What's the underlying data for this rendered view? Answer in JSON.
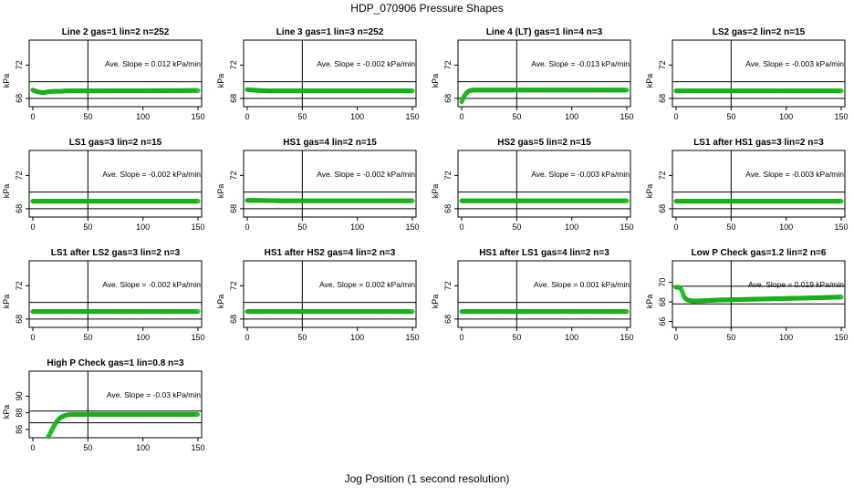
{
  "page": {
    "title": "HDP_070906  Pressure Shapes",
    "x_caption": "Jog Position (1 second resolution)"
  },
  "colors": {
    "series": "#22cc22",
    "series_edge": "#119911",
    "axes": "#000000",
    "background": "#ffffff"
  },
  "chart_data": [
    {
      "type": "scatter",
      "title": "Line 2 gas=1 lin=2 n=252",
      "ylabel": "kPa",
      "annotation": "Ave. Slope =  0.012  kPa/min",
      "xlim": [
        0,
        150
      ],
      "xticks": [
        0,
        50,
        100,
        150
      ],
      "ylim": [
        67,
        75
      ],
      "yticks": [
        68,
        72
      ],
      "hlines": [
        68,
        70
      ],
      "vline": 50,
      "series": [
        {
          "x": [
            0,
            2,
            4,
            6,
            8,
            10,
            12,
            15,
            20,
            25,
            30,
            40,
            60,
            80,
            100,
            120,
            150
          ],
          "y": [
            69.0,
            68.9,
            68.8,
            68.75,
            68.7,
            68.7,
            68.75,
            68.8,
            68.85,
            68.85,
            68.9,
            68.9,
            68.9,
            68.92,
            68.92,
            68.93,
            68.95
          ]
        }
      ]
    },
    {
      "type": "scatter",
      "title": "Line 3 gas=1 lin=3 n=252",
      "ylabel": "kPa",
      "annotation": "Ave. Slope =  -0.002  kPa/min",
      "xlim": [
        0,
        150
      ],
      "xticks": [
        0,
        50,
        100,
        150
      ],
      "ylim": [
        67,
        75
      ],
      "yticks": [
        68,
        72
      ],
      "hlines": [
        68,
        70
      ],
      "vline": 50,
      "series": [
        {
          "x": [
            0,
            5,
            10,
            20,
            40,
            60,
            80,
            100,
            120,
            150
          ],
          "y": [
            69.05,
            69.0,
            68.95,
            68.9,
            68.9,
            68.9,
            68.9,
            68.9,
            68.9,
            68.9
          ]
        }
      ]
    },
    {
      "type": "scatter",
      "title": "Line 4 (LT) gas=1 lin=4 n=3",
      "ylabel": "kPa",
      "annotation": "Ave. Slope =  -0.013  kPa/min",
      "xlim": [
        0,
        150
      ],
      "xticks": [
        0,
        50,
        100,
        150
      ],
      "ylim": [
        67,
        75
      ],
      "yticks": [
        68,
        72
      ],
      "hlines": [
        68,
        70
      ],
      "vline": 50,
      "series": [
        {
          "x": [
            0,
            1,
            2,
            3,
            4,
            5,
            6,
            7,
            8,
            9,
            10,
            15,
            20,
            40,
            60,
            80,
            100,
            120,
            150
          ],
          "y": [
            67.6,
            67.9,
            68.2,
            68.4,
            68.6,
            68.75,
            68.85,
            68.9,
            68.95,
            68.95,
            69.0,
            69.0,
            69.0,
            69.0,
            69.0,
            69.0,
            69.0,
            69.0,
            69.0
          ]
        }
      ]
    },
    {
      "type": "scatter",
      "title": "LS2 gas=2 lin=2 n=15",
      "ylabel": "kPa",
      "annotation": "Ave. Slope =  -0.003  kPa/min",
      "xlim": [
        0,
        150
      ],
      "xticks": [
        0,
        50,
        100,
        150
      ],
      "ylim": [
        67,
        75
      ],
      "yticks": [
        68,
        72
      ],
      "hlines": [
        68,
        70
      ],
      "vline": 50,
      "series": [
        {
          "x": [
            0,
            10,
            30,
            60,
            90,
            120,
            150
          ],
          "y": [
            68.9,
            68.9,
            68.9,
            68.9,
            68.9,
            68.9,
            68.9
          ]
        }
      ]
    },
    {
      "type": "scatter",
      "title": "LS1 gas=3 lin=2 n=15",
      "ylabel": "kPa",
      "annotation": "Ave. Slope =  -0.002  kPa/min",
      "xlim": [
        0,
        150
      ],
      "xticks": [
        0,
        50,
        100,
        150
      ],
      "ylim": [
        67,
        75
      ],
      "yticks": [
        68,
        72
      ],
      "hlines": [
        68,
        70
      ],
      "vline": 50,
      "series": [
        {
          "x": [
            0,
            10,
            30,
            60,
            90,
            120,
            150
          ],
          "y": [
            68.9,
            68.9,
            68.9,
            68.9,
            68.9,
            68.9,
            68.9
          ]
        }
      ]
    },
    {
      "type": "scatter",
      "title": "HS1 gas=4 lin=2 n=15",
      "ylabel": "kPa",
      "annotation": "Ave. Slope =  -0.002  kPa/min",
      "xlim": [
        0,
        150
      ],
      "xticks": [
        0,
        50,
        100,
        150
      ],
      "ylim": [
        67,
        75
      ],
      "yticks": [
        68,
        72
      ],
      "hlines": [
        68,
        70
      ],
      "vline": 50,
      "series": [
        {
          "x": [
            0,
            10,
            30,
            60,
            90,
            120,
            150
          ],
          "y": [
            69.0,
            69.0,
            68.95,
            68.95,
            68.95,
            68.95,
            68.95
          ]
        }
      ]
    },
    {
      "type": "scatter",
      "title": "HS2 gas=5 lin=2 n=15",
      "ylabel": "kPa",
      "annotation": "Ave. Slope =  -0.003  kPa/min",
      "xlim": [
        0,
        150
      ],
      "xticks": [
        0,
        50,
        100,
        150
      ],
      "ylim": [
        67,
        75
      ],
      "yticks": [
        68,
        72
      ],
      "hlines": [
        68,
        70
      ],
      "vline": 50,
      "series": [
        {
          "x": [
            0,
            10,
            30,
            60,
            90,
            120,
            150
          ],
          "y": [
            68.95,
            68.95,
            68.95,
            68.95,
            68.95,
            68.95,
            68.95
          ]
        }
      ]
    },
    {
      "type": "scatter",
      "title": "LS1 after HS1 gas=3 lin=2 n=3",
      "ylabel": "kPa",
      "annotation": "Ave. Slope =  -0.003  kPa/min",
      "xlim": [
        0,
        150
      ],
      "xticks": [
        0,
        50,
        100,
        150
      ],
      "ylim": [
        67,
        75
      ],
      "yticks": [
        68,
        72
      ],
      "hlines": [
        68,
        70
      ],
      "vline": 50,
      "series": [
        {
          "x": [
            0,
            10,
            30,
            60,
            90,
            120,
            150
          ],
          "y": [
            68.9,
            68.9,
            68.9,
            68.9,
            68.9,
            68.9,
            68.9
          ]
        }
      ]
    },
    {
      "type": "scatter",
      "title": "LS1 after LS2 gas=3 lin=2 n=3",
      "ylabel": "kPa",
      "annotation": "Ave. Slope =  -0.002  kPa/min",
      "xlim": [
        0,
        150
      ],
      "xticks": [
        0,
        50,
        100,
        150
      ],
      "ylim": [
        67,
        75
      ],
      "yticks": [
        68,
        72
      ],
      "hlines": [
        68,
        70
      ],
      "vline": 50,
      "series": [
        {
          "x": [
            0,
            10,
            30,
            60,
            90,
            120,
            150
          ],
          "y": [
            68.9,
            68.9,
            68.9,
            68.9,
            68.9,
            68.9,
            68.9
          ]
        }
      ]
    },
    {
      "type": "scatter",
      "title": "HS1 after HS2 gas=4 lin=2 n=3",
      "ylabel": "kPa",
      "annotation": "Ave. Slope =  0.002  kPa/min",
      "xlim": [
        0,
        150
      ],
      "xticks": [
        0,
        50,
        100,
        150
      ],
      "ylim": [
        67,
        75
      ],
      "yticks": [
        68,
        72
      ],
      "hlines": [
        68,
        70
      ],
      "vline": 50,
      "series": [
        {
          "x": [
            0,
            10,
            30,
            60,
            90,
            120,
            150
          ],
          "y": [
            68.9,
            68.9,
            68.9,
            68.9,
            68.9,
            68.9,
            68.9
          ]
        }
      ]
    },
    {
      "type": "scatter",
      "title": "HS1 after LS1 gas=4 lin=2 n=3",
      "ylabel": "kPa",
      "annotation": "Ave. Slope =  0.001  kPa/min",
      "xlim": [
        0,
        150
      ],
      "xticks": [
        0,
        50,
        100,
        150
      ],
      "ylim": [
        67,
        75
      ],
      "yticks": [
        68,
        72
      ],
      "hlines": [
        68,
        70
      ],
      "vline": 50,
      "series": [
        {
          "x": [
            0,
            10,
            30,
            60,
            90,
            120,
            150
          ],
          "y": [
            68.9,
            68.9,
            68.9,
            68.9,
            68.9,
            68.9,
            68.9
          ]
        }
      ]
    },
    {
      "type": "scatter",
      "title": "Low P Check gas=1.2 lin=2 n=6",
      "ylabel": "kPa",
      "annotation": "Ave. Slope =  0.019  kPa/min",
      "xlim": [
        0,
        150
      ],
      "xticks": [
        0,
        50,
        100,
        150
      ],
      "ylim": [
        65.4,
        72.2
      ],
      "yticks": [
        66,
        68,
        70
      ],
      "hlines": [
        67.8,
        69.6
      ],
      "vline": 50,
      "series": [
        {
          "x": [
            0,
            2,
            4,
            5,
            6,
            7,
            8,
            9,
            10,
            12,
            15,
            20,
            30,
            40,
            60,
            80,
            100,
            120,
            150
          ],
          "y": [
            69.5,
            69.5,
            69.4,
            69.2,
            68.9,
            68.6,
            68.4,
            68.3,
            68.2,
            68.15,
            68.1,
            68.1,
            68.15,
            68.2,
            68.25,
            68.3,
            68.35,
            68.4,
            68.5
          ]
        }
      ]
    },
    {
      "type": "scatter",
      "title": "High P Check gas=1 lin=0.8 n=3",
      "ylabel": "kPa",
      "annotation": "Ave. Slope =  -0.03  kPa/min",
      "xlim": [
        0,
        150
      ],
      "xticks": [
        0,
        50,
        100,
        150
      ],
      "ylim": [
        85,
        93
      ],
      "yticks": [
        86,
        88,
        90
      ],
      "hlines": [
        86.8,
        88.2
      ],
      "vline": 50,
      "series": [
        {
          "x": [
            14,
            16,
            18,
            20,
            22,
            24,
            26,
            28,
            30,
            32,
            35,
            40,
            45,
            50,
            60,
            80,
            100,
            120,
            150
          ],
          "y": [
            85.1,
            85.6,
            86.1,
            86.6,
            87.0,
            87.3,
            87.5,
            87.6,
            87.7,
            87.75,
            87.8,
            87.8,
            87.8,
            87.8,
            87.8,
            87.8,
            87.8,
            87.8,
            87.8
          ]
        }
      ]
    }
  ]
}
